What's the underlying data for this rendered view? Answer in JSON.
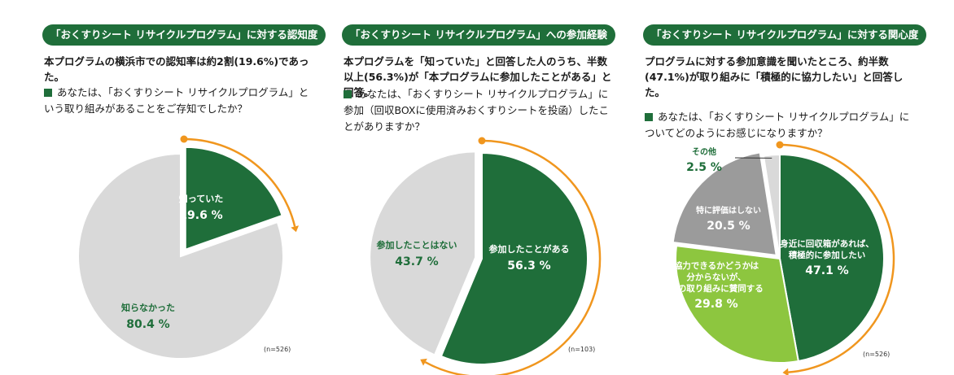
{
  "chart_data": [
    {
      "type": "pie",
      "title": "「おくすりシート リサイクルプログラム」に対する認知度",
      "subtitle": "本プログラムの横浜市での認知率は約2割(19.6%)であった。",
      "question": "あなたは、「おくすりシート リサイクルプログラム」という取り組みがあることをご存知でしたか？",
      "note": "(n=526)",
      "slices": [
        {
          "label": "知っていた",
          "value": 19.6,
          "display": "19.6 %",
          "color": "#1f6e3a"
        },
        {
          "label": "知らなかった",
          "value": 80.4,
          "display": "80.4 %",
          "color": "#d9d9d9"
        }
      ]
    },
    {
      "type": "pie",
      "title": "「おくすりシート リサイクルプログラム」への参加経験",
      "subtitle": "本プログラムを「知っていた」と回答した人のうち、半数以上(56.3%)が「本プログラムに参加したことがある」と回答。",
      "question": "あなたは、「おくすりシート リサイクルプログラム」に参加（回収BOXに使用済みおくすりシートを投函）したことがありますか？",
      "note": "(n=103)",
      "slices": [
        {
          "label": "参加したことがある",
          "value": 56.3,
          "display": "56.3 %",
          "color": "#1f6e3a"
        },
        {
          "label": "参加したことはない",
          "value": 43.7,
          "display": "43.7 %",
          "color": "#d9d9d9"
        }
      ]
    },
    {
      "type": "pie",
      "title": "「おくすりシート リサイクルプログラム」に対する関心度",
      "subtitle": "プログラムに対する参加意識を聞いたところ、約半数(47.1%)が取り組みに「積極的に協力したい」と回答した。",
      "question": "あなたは、「おくすりシート リサイクルプログラム」についてどのようにお感じになりますか？",
      "note": "(n=526)",
      "slices": [
        {
          "label": "身近に回収箱があれば、積極的に参加したい",
          "value": 47.1,
          "display": "47.1 %",
          "color": "#1f6e3a"
        },
        {
          "label": "協力できるかどうかは分からないが、この取り組みに賛同する",
          "value": 29.8,
          "display": "29.8 %",
          "color": "#8dc63f"
        },
        {
          "label": "特に評価はしない",
          "value": 20.5,
          "display": "20.5 %",
          "color": "#9b9b9b"
        },
        {
          "label": "その他",
          "value": 2.5,
          "display": "2.5 %",
          "color": "#d9d9d9"
        }
      ]
    }
  ]
}
